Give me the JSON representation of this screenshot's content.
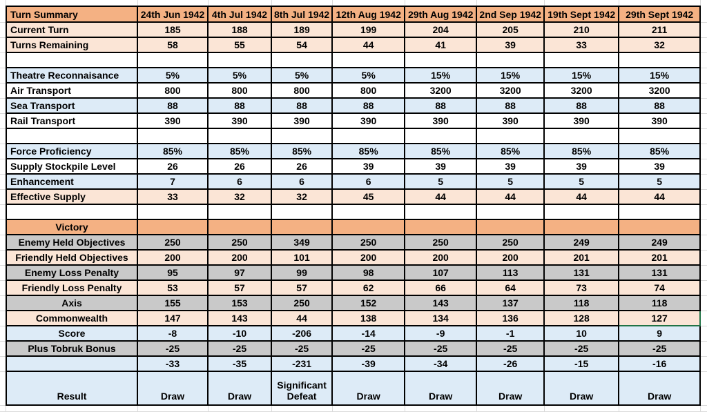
{
  "table": {
    "corner_label": "Turn Summary",
    "columns": [
      "24th Jun 1942",
      "4th Jul 1942",
      "8th Jul 1942",
      "12th Aug 1942",
      "29th Aug 1942",
      "2nd Sep 1942",
      "19th Sept 1942",
      "29th Sept 1942"
    ],
    "rows": [
      {
        "name": "current-turn",
        "label": "Current Turn",
        "kind": "peach",
        "label_align": "left",
        "values": [
          "185",
          "188",
          "189",
          "199",
          "204",
          "205",
          "210",
          "211"
        ]
      },
      {
        "name": "turns-remaining",
        "label": "Turns Remaining",
        "kind": "peach",
        "label_align": "left",
        "values": [
          "58",
          "55",
          "54",
          "44",
          "41",
          "39",
          "33",
          "32"
        ]
      },
      {
        "name": "gap-1",
        "label": "",
        "kind": "white",
        "label_align": "left",
        "values": [
          "",
          "",
          "",
          "",
          "",
          "",
          "",
          ""
        ]
      },
      {
        "name": "theatre-reconnaisance",
        "label": "Theatre Reconnaisance",
        "kind": "blue",
        "label_align": "left",
        "values": [
          "5%",
          "5%",
          "5%",
          "5%",
          "15%",
          "15%",
          "15%",
          "15%"
        ]
      },
      {
        "name": "air-transport",
        "label": "Air Transport",
        "kind": "white",
        "label_align": "left",
        "values": [
          "800",
          "800",
          "800",
          "800",
          "3200",
          "3200",
          "3200",
          "3200"
        ]
      },
      {
        "name": "sea-transport",
        "label": "Sea Transport",
        "kind": "blue",
        "label_align": "left",
        "values": [
          "88",
          "88",
          "88",
          "88",
          "88",
          "88",
          "88",
          "88"
        ]
      },
      {
        "name": "rail-transport",
        "label": "Rail Transport",
        "kind": "white",
        "label_align": "left",
        "values": [
          "390",
          "390",
          "390",
          "390",
          "390",
          "390",
          "390",
          "390"
        ]
      },
      {
        "name": "gap-2",
        "label": "",
        "kind": "white",
        "label_align": "left",
        "values": [
          "",
          "",
          "",
          "",
          "",
          "",
          "",
          ""
        ]
      },
      {
        "name": "force-proficiency",
        "label": "Force Proficiency",
        "kind": "blue",
        "label_align": "left",
        "values": [
          "85%",
          "85%",
          "85%",
          "85%",
          "85%",
          "85%",
          "85%",
          "85%"
        ]
      },
      {
        "name": "supply-stockpile-level",
        "label": "Supply Stockpile Level",
        "kind": "white",
        "label_align": "left",
        "values": [
          "26",
          "26",
          "26",
          "39",
          "39",
          "39",
          "39",
          "39"
        ]
      },
      {
        "name": "enhancement",
        "label": "Enhancement",
        "kind": "blue",
        "label_align": "left",
        "values": [
          "7",
          "6",
          "6",
          "6",
          "5",
          "5",
          "5",
          "5"
        ]
      },
      {
        "name": "effective-supply",
        "label": "Effective Supply",
        "kind": "peach",
        "label_align": "left",
        "values": [
          "33",
          "32",
          "32",
          "45",
          "44",
          "44",
          "44",
          "44"
        ]
      },
      {
        "name": "gap-3",
        "label": "",
        "kind": "white",
        "label_align": "left",
        "values": [
          "",
          "",
          "",
          "",
          "",
          "",
          "",
          ""
        ]
      },
      {
        "name": "victory-header",
        "label": "Victory",
        "kind": "orange",
        "label_align": "center",
        "values": [
          "",
          "",
          "",
          "",
          "",
          "",
          "",
          ""
        ]
      },
      {
        "name": "enemy-held-objectives",
        "label": "Enemy Held Objectives",
        "kind": "gray",
        "label_align": "center",
        "values": [
          "250",
          "250",
          "349",
          "250",
          "250",
          "250",
          "249",
          "249"
        ]
      },
      {
        "name": "friendly-held-objectives",
        "label": "Friendly Held Objectives",
        "kind": "peach",
        "label_align": "center",
        "values": [
          "200",
          "200",
          "101",
          "200",
          "200",
          "200",
          "201",
          "201"
        ]
      },
      {
        "name": "enemy-loss-penalty",
        "label": "Enemy Loss Penalty",
        "kind": "gray",
        "label_align": "center",
        "values": [
          "95",
          "97",
          "99",
          "98",
          "107",
          "113",
          "131",
          "131"
        ]
      },
      {
        "name": "friendly-loss-penalty",
        "label": "Friendly Loss Penalty",
        "kind": "peach",
        "label_align": "center",
        "values": [
          "53",
          "57",
          "57",
          "62",
          "66",
          "64",
          "73",
          "74"
        ]
      },
      {
        "name": "axis",
        "label": "Axis",
        "kind": "gray",
        "label_align": "center",
        "values": [
          "155",
          "153",
          "250",
          "152",
          "143",
          "137",
          "118",
          "118"
        ]
      },
      {
        "name": "commonwealth",
        "label": "Commonwealth",
        "kind": "peach",
        "label_align": "center",
        "values": [
          "147",
          "143",
          "44",
          "138",
          "134",
          "136",
          "128",
          "127"
        ]
      },
      {
        "name": "score",
        "label": "Score",
        "kind": "blue",
        "label_align": "center",
        "values": [
          "-8",
          "-10",
          "-206",
          "-14",
          "-9",
          "-1",
          "10",
          "9"
        ]
      },
      {
        "name": "plus-tobruk-bonus",
        "label": "Plus Tobruk Bonus",
        "kind": "gray",
        "label_align": "center",
        "values": [
          "-25",
          "-25",
          "-25",
          "-25",
          "-25",
          "-25",
          "-25",
          "-25"
        ]
      },
      {
        "name": "score-with-bonus",
        "label": "",
        "kind": "blue",
        "label_align": "center",
        "values": [
          "-33",
          "-35",
          "-231",
          "-39",
          "-34",
          "-26",
          "-15",
          "-16"
        ]
      },
      {
        "name": "result",
        "label": "Result",
        "kind": "result",
        "label_align": "center",
        "values": [
          "Draw",
          "Draw",
          "Significant Defeat",
          "Draw",
          "Draw",
          "Draw",
          "Draw",
          "Draw"
        ]
      }
    ]
  },
  "selection": {
    "row_label": "Commonwealth",
    "column_label": "29th Sept 1942",
    "row_index": 19,
    "col_index": 7,
    "value": "127"
  },
  "colors": {
    "header_orange": "#F4B183",
    "peach": "#FBE5D6",
    "blue": "#DDEBF7",
    "gray": "#C9C9C9",
    "white": "#FFFFFF",
    "border_black": "#000000",
    "selection_green": "#217346",
    "gridline": "#D9D9D9"
  }
}
